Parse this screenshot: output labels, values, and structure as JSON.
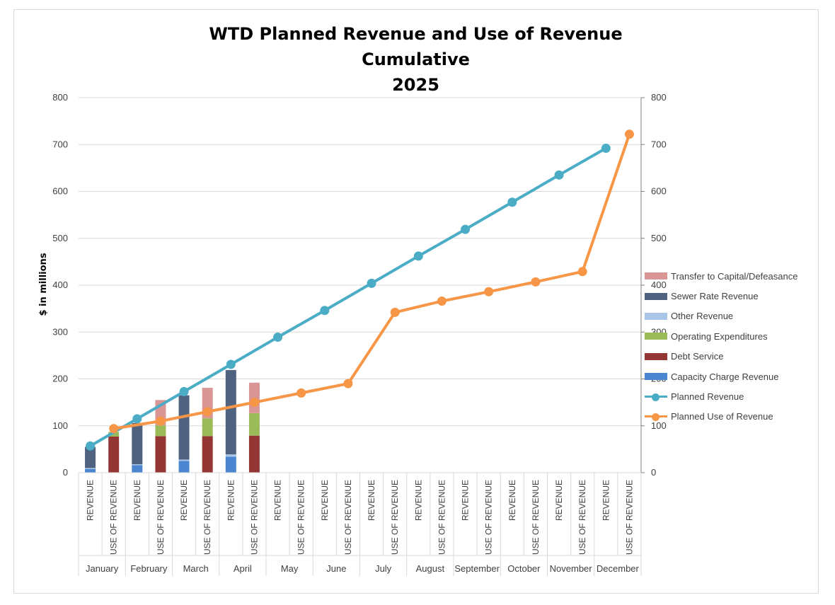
{
  "title_lines": [
    "WTD Planned Revenue and Use of Revenue",
    "Cumulative",
    "2025"
  ],
  "chart_data": {
    "type": "bar",
    "title": "WTD Planned Revenue and Use of Revenue Cumulative 2025",
    "ylabel": "$ in millions",
    "ylim": [
      0,
      800
    ],
    "y2lim": [
      0,
      800
    ],
    "yticks": [
      0,
      100,
      200,
      300,
      400,
      500,
      600,
      700,
      800
    ],
    "months": [
      "January",
      "February",
      "March",
      "April",
      "May",
      "June",
      "July",
      "August",
      "September",
      "October",
      "November",
      "December"
    ],
    "sub_categories": [
      "REVENUE",
      "USE OF REVENUE"
    ],
    "stacked_series": [
      {
        "name": "Transfer to Capital/Defeasance",
        "color": "#d99694",
        "bar": "USE OF REVENUE",
        "values": [
          0,
          54,
          65,
          65,
          0,
          0,
          0,
          0,
          0,
          0,
          0,
          0
        ]
      },
      {
        "name": "Sewer Rate Revenue",
        "color": "#4f6380",
        "bar": "REVENUE",
        "values": [
          45,
          88,
          137,
          180,
          0,
          0,
          0,
          0,
          0,
          0,
          0,
          0
        ]
      },
      {
        "name": "Other Revenue",
        "color": "#a9c6e8",
        "bar": "REVENUE",
        "values": [
          2,
          2,
          3,
          5,
          0,
          0,
          0,
          0,
          0,
          0,
          0,
          0
        ]
      },
      {
        "name": "Operating Expenditures",
        "color": "#9bbb59",
        "bar": "USE OF REVENUE",
        "values": [
          10,
          23,
          38,
          48,
          0,
          0,
          0,
          0,
          0,
          0,
          0,
          0
        ]
      },
      {
        "name": "Debt Service",
        "color": "#943634",
        "bar": "USE OF REVENUE",
        "values": [
          77,
          78,
          78,
          79,
          0,
          0,
          0,
          0,
          0,
          0,
          0,
          0
        ]
      },
      {
        "name": "Capacity Charge Revenue",
        "color": "#4a86d0",
        "bar": "REVENUE",
        "values": [
          8,
          16,
          25,
          34,
          0,
          0,
          0,
          0,
          0,
          0,
          0,
          0
        ]
      }
    ],
    "line_series": [
      {
        "name": "Planned Revenue",
        "color": "#4bacc6",
        "anchor": "REVENUE",
        "values": [
          57,
          115,
          173,
          231,
          289,
          346,
          404,
          462,
          519,
          577,
          635,
          692
        ]
      },
      {
        "name": "Planned Use of Revenue",
        "color": "#f79646",
        "anchor": "USE OF REVENUE",
        "values": [
          94,
          110,
          130,
          150,
          170,
          190,
          342,
          366,
          386,
          407,
          429,
          722
        ]
      }
    ],
    "legend_order": [
      "Transfer to Capital/Defeasance",
      "Sewer Rate Revenue",
      "Other Revenue",
      "Operating Expenditures",
      "Debt Service",
      "Capacity Charge Revenue",
      "Planned Revenue",
      "Planned Use of Revenue"
    ],
    "grid": true,
    "legend_position": "right"
  }
}
